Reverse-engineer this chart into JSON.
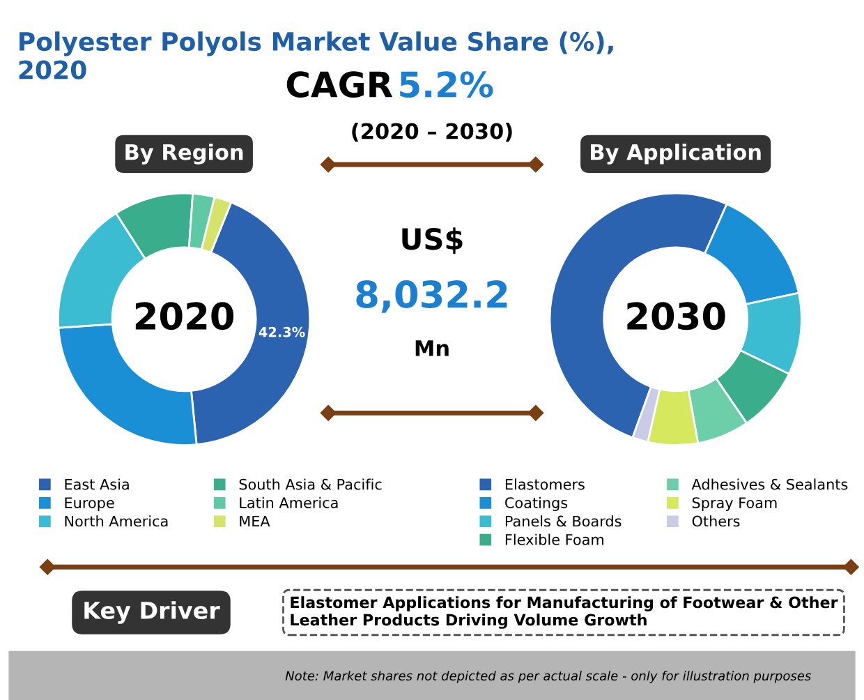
{
  "chart_data": [
    {
      "type": "other",
      "title": "Polyester Polyols Market Value Share (%), 2020",
      "annotations": [
        "CAGR",
        "5.2%",
        "(2020 – 2030)",
        "US$",
        "8,032.2",
        "Mn",
        "Key Driver",
        "Elastomer Applications for Manufacturing of Footwear & Other Leather Products Driving Volume Growth",
        "Note: Market shares not depicted as per actual scale - only for illustration purposes"
      ]
    },
    {
      "type": "donut",
      "title": "By Region",
      "annotations": [
        "2020"
      ],
      "categories": [
        "East Asia",
        "Europe",
        "North America",
        "South Asia & Pacific",
        "Latin America",
        "MEA"
      ],
      "values": [
        42.3,
        25.5,
        17,
        10.2,
        2.8,
        2.2
      ],
      "value_labels": [
        "42.3%",
        null,
        null,
        null,
        null,
        null
      ],
      "colors": [
        "#2b63b0",
        "#1a8fd6",
        "#3bbcd3",
        "#3aae8c",
        "#5fc9a6",
        "#d6e36a"
      ],
      "legend": "bottom"
    },
    {
      "type": "donut",
      "title": "By Application",
      "annotations": [
        "2030"
      ],
      "categories": [
        "Elastomers",
        "Coatings",
        "Panels & Boards",
        "Flexible Foam",
        "Adhesives & Sealants",
        "Spray Foam",
        "Others"
      ],
      "values": [
        51.1,
        15,
        10.5,
        8.3,
        6.7,
        6.4,
        2
      ],
      "colors": [
        "#2b63b0",
        "#1a8fd6",
        "#3bbcd3",
        "#3aae8c",
        "#6ccfaa",
        "#d6e85e",
        "#c8cce6"
      ],
      "legend": "bottom"
    }
  ]
}
